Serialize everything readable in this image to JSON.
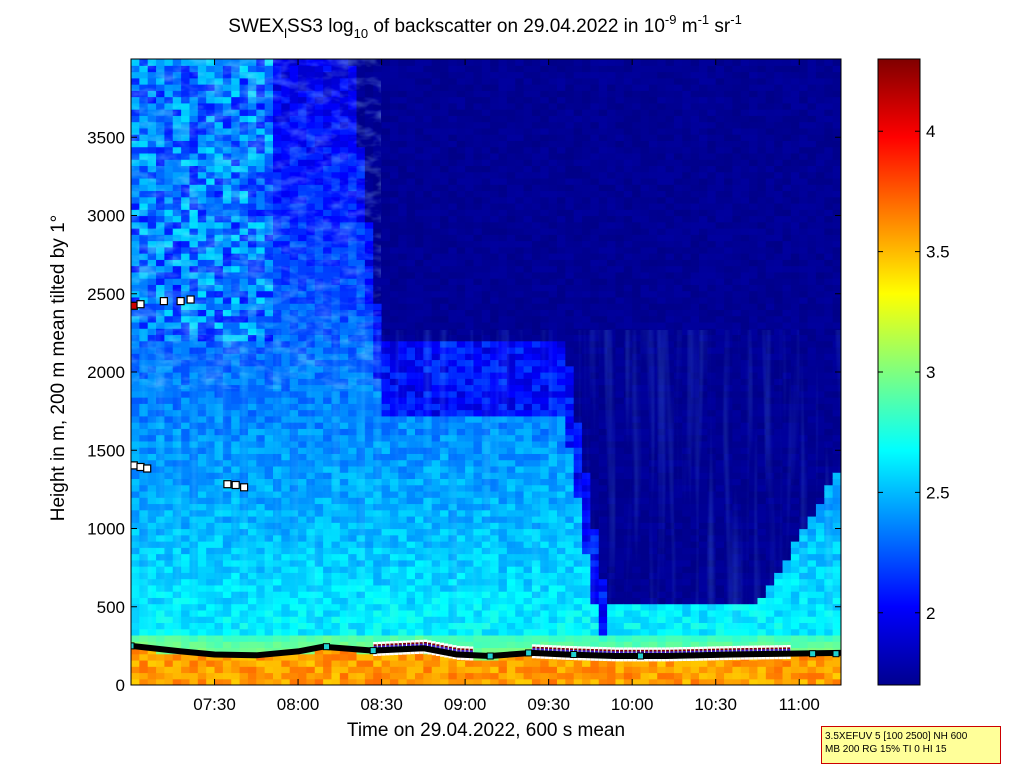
{
  "chart_data": {
    "type": "heatmap",
    "title": {
      "prefix": "SWEX",
      "sub1": "l",
      "mid": "SS3 log",
      "sub2": "10",
      "rest": " of backscatter on 29.04.2022 in 10",
      "sup1": "-9",
      "unit1": " m",
      "sup2": "-1",
      "unit2": " sr",
      "sup3": "-1"
    },
    "xlabel": "Time on 29.04.2022, 600 s mean",
    "ylabel": "Height in m, 200 m mean tilted by 1°",
    "x_range_hours": [
      7.0,
      11.25
    ],
    "y_range_m": [
      0,
      4000
    ],
    "x_ticks": [
      {
        "t": 7.5,
        "label": "07:30"
      },
      {
        "t": 8.0,
        "label": "08:00"
      },
      {
        "t": 8.5,
        "label": "08:30"
      },
      {
        "t": 9.0,
        "label": "09:00"
      },
      {
        "t": 9.5,
        "label": "09:30"
      },
      {
        "t": 10.0,
        "label": "10:00"
      },
      {
        "t": 10.5,
        "label": "10:30"
      },
      {
        "t": 11.0,
        "label": "11:00"
      }
    ],
    "y_ticks": [
      0,
      500,
      1000,
      1500,
      2000,
      2500,
      3000,
      3500
    ],
    "colorbar": {
      "range": [
        1.7,
        4.3
      ],
      "ticks": [
        2,
        2.5,
        3,
        3.5,
        4
      ],
      "colormap": "jet"
    },
    "cloud_base_markers": [
      {
        "t": 7.02,
        "h": 2420,
        "color": "#cc0000"
      },
      {
        "t": 7.06,
        "h": 2430,
        "color": "#ffffff"
      },
      {
        "t": 7.2,
        "h": 2450,
        "color": "#ffffff"
      },
      {
        "t": 7.3,
        "h": 2450,
        "color": "#ffffff"
      },
      {
        "t": 7.36,
        "h": 2460,
        "color": "#ffffff"
      },
      {
        "t": 7.02,
        "h": 1400,
        "color": "#ffffff"
      },
      {
        "t": 7.06,
        "h": 1390,
        "color": "#ffffff"
      },
      {
        "t": 7.1,
        "h": 1380,
        "color": "#ffffff"
      },
      {
        "t": 7.58,
        "h": 1280,
        "color": "#ffffff"
      },
      {
        "t": 7.63,
        "h": 1275,
        "color": "#ffffff"
      },
      {
        "t": 7.68,
        "h": 1260,
        "color": "#ffffff"
      }
    ],
    "mixing_layer_line": [
      [
        7.0,
        250
      ],
      [
        7.3,
        215
      ],
      [
        7.5,
        195
      ],
      [
        7.75,
        190
      ],
      [
        8.0,
        215
      ],
      [
        8.15,
        245
      ],
      [
        8.45,
        220
      ],
      [
        8.75,
        235
      ],
      [
        8.95,
        195
      ],
      [
        9.15,
        185
      ],
      [
        9.4,
        205
      ],
      [
        9.6,
        195
      ],
      [
        9.9,
        185
      ],
      [
        10.2,
        185
      ],
      [
        10.6,
        195
      ],
      [
        10.9,
        200
      ],
      [
        11.25,
        205
      ]
    ],
    "info_box": [
      "3.5XEFUV 5 [100 2500] NH 600",
      "MB 200 RG 15% TI 0 HI 15"
    ]
  }
}
